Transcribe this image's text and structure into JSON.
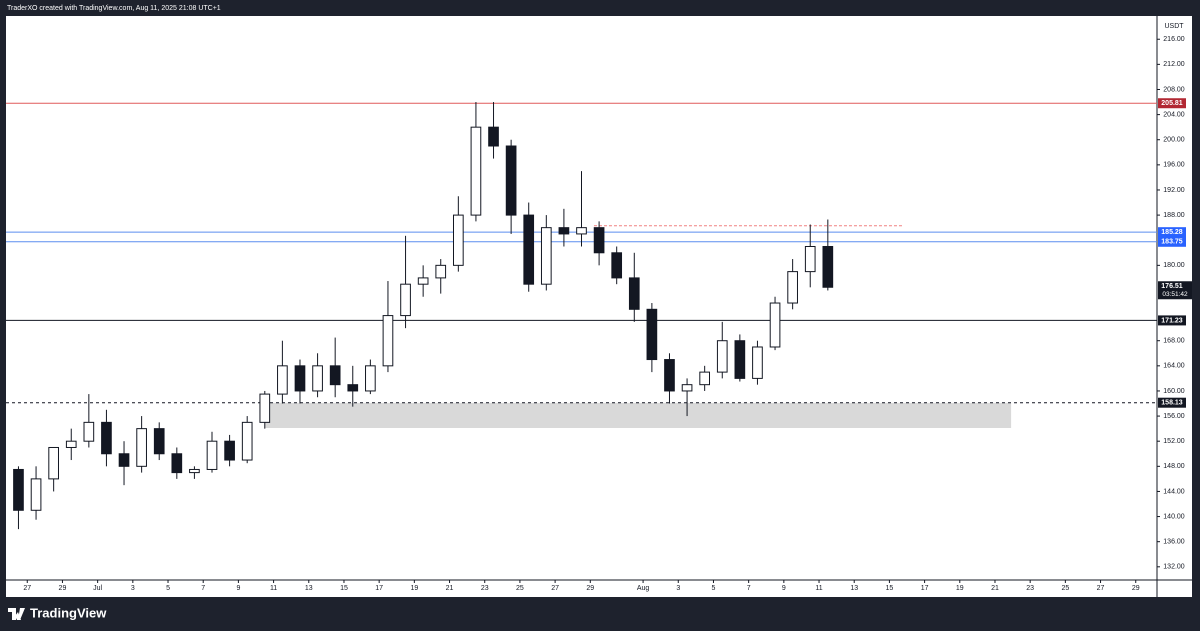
{
  "header": "TraderXO created with TradingView.com, Aug 11, 2025 21:08 UTC+1",
  "footer": "TradingView",
  "chart_data": {
    "type": "candlestick",
    "currency": "USDT",
    "x": [
      "2025-06-26T00:00",
      "2025-06-27T00:00",
      "2025-06-28T00:00",
      "2025-06-29T00:00",
      "2025-06-30T00:00",
      "2025-07-01T00:00",
      "2025-07-02T00:00",
      "2025-07-03T00:00",
      "2025-07-04T00:00",
      "2025-07-05T00:00",
      "2025-07-06T00:00",
      "2025-07-07T00:00",
      "2025-07-08T00:00",
      "2025-07-09T00:00",
      "2025-07-10T00:00",
      "2025-07-11T00:00",
      "2025-07-12T00:00",
      "2025-07-13T00:00",
      "2025-07-14T00:00",
      "2025-07-15T00:00",
      "2025-07-16T00:00",
      "2025-07-17T00:00",
      "2025-07-18T00:00",
      "2025-07-19T00:00",
      "2025-07-20T00:00",
      "2025-07-21T00:00",
      "2025-07-22T00:00",
      "2025-07-23T00:00",
      "2025-07-24T00:00",
      "2025-07-25T00:00",
      "2025-07-26T00:00",
      "2025-07-27T00:00",
      "2025-07-28T00:00",
      "2025-07-29T00:00",
      "2025-07-30T00:00",
      "2025-07-31T00:00",
      "2025-08-01T00:00",
      "2025-08-02T00:00",
      "2025-08-03T00:00",
      "2025-08-04T00:00",
      "2025-08-05T00:00",
      "2025-08-06T00:00",
      "2025-08-07T00:00",
      "2025-08-08T00:00",
      "2025-08-09T00:00",
      "2025-08-10T00:00",
      "2025-08-11T00:00"
    ],
    "open": [
      147.5,
      141,
      146,
      151,
      152,
      155,
      150,
      148,
      154,
      150,
      147,
      147.5,
      152,
      149,
      155,
      159.5,
      164,
      160,
      164,
      161,
      160,
      164,
      172,
      177,
      178,
      180,
      188,
      202,
      199,
      188,
      177,
      186,
      185,
      186,
      182,
      178,
      173,
      165,
      160,
      161,
      163,
      168,
      162,
      167,
      174,
      179,
      183
    ],
    "high": [
      148,
      148,
      150.5,
      154,
      159.5,
      157,
      152,
      156,
      155,
      151,
      148,
      153.5,
      153,
      156,
      160,
      168,
      165,
      166,
      168.5,
      164,
      165,
      177.5,
      184.7,
      180,
      181,
      191,
      206,
      206,
      200,
      190,
      188,
      189,
      195,
      187,
      183,
      182,
      174,
      166,
      162,
      164,
      171,
      169,
      168,
      175,
      181,
      186.5,
      187.3
    ],
    "low": [
      138,
      139.5,
      144,
      149,
      151,
      148,
      145,
      147,
      149,
      146,
      146,
      147,
      148,
      148.5,
      154,
      158,
      158,
      159,
      159,
      157.5,
      159.5,
      163,
      170,
      175,
      175.5,
      179,
      187,
      197,
      185,
      175.8,
      176,
      183,
      183,
      180,
      177,
      171,
      163,
      158,
      156,
      160,
      162,
      161.5,
      161,
      166.5,
      173,
      176.5,
      176
    ],
    "close": [
      141,
      146,
      151,
      152,
      155,
      150,
      148,
      154,
      150,
      147,
      147.5,
      152,
      149,
      155,
      159.5,
      164,
      160,
      164,
      161,
      160,
      164,
      172,
      177,
      178,
      180,
      188,
      202,
      199,
      188,
      177,
      186,
      185,
      186,
      182,
      178,
      173,
      165,
      160,
      161,
      163,
      168,
      162,
      167,
      174,
      179,
      183,
      176.51
    ],
    "xlim": [
      "2025-06-25T19:00",
      "2025-08-30T05:00"
    ],
    "ylim": [
      129.9,
      219.7
    ],
    "xticks": [
      {
        "value": "2025-06-27T00:00",
        "label": "27"
      },
      {
        "value": "2025-06-29T00:00",
        "label": "29"
      },
      {
        "value": "2025-07-01T00:00",
        "label": "Jul"
      },
      {
        "value": "2025-07-03T00:00",
        "label": "3"
      },
      {
        "value": "2025-07-05T00:00",
        "label": "5"
      },
      {
        "value": "2025-07-07T00:00",
        "label": "7"
      },
      {
        "value": "2025-07-09T00:00",
        "label": "9"
      },
      {
        "value": "2025-07-11T00:00",
        "label": "11"
      },
      {
        "value": "2025-07-13T00:00",
        "label": "13"
      },
      {
        "value": "2025-07-15T00:00",
        "label": "15"
      },
      {
        "value": "2025-07-17T00:00",
        "label": "17"
      },
      {
        "value": "2025-07-19T00:00",
        "label": "19"
      },
      {
        "value": "2025-07-21T00:00",
        "label": "21"
      },
      {
        "value": "2025-07-23T00:00",
        "label": "23"
      },
      {
        "value": "2025-07-25T00:00",
        "label": "25"
      },
      {
        "value": "2025-07-27T00:00",
        "label": "27"
      },
      {
        "value": "2025-07-29T00:00",
        "label": "29"
      },
      {
        "value": "2025-08-01T00:00",
        "label": "Aug"
      },
      {
        "value": "2025-08-03T00:00",
        "label": "3"
      },
      {
        "value": "2025-08-05T00:00",
        "label": "5"
      },
      {
        "value": "2025-08-07T00:00",
        "label": "7"
      },
      {
        "value": "2025-08-09T00:00",
        "label": "9"
      },
      {
        "value": "2025-08-11T00:00",
        "label": "11"
      },
      {
        "value": "2025-08-13T00:00",
        "label": "13"
      },
      {
        "value": "2025-08-15T00:00",
        "label": "15"
      },
      {
        "value": "2025-08-17T00:00",
        "label": "17"
      },
      {
        "value": "2025-08-19T00:00",
        "label": "19"
      },
      {
        "value": "2025-08-21T00:00",
        "label": "21"
      },
      {
        "value": "2025-08-23T00:00",
        "label": "23"
      },
      {
        "value": "2025-08-25T00:00",
        "label": "25"
      },
      {
        "value": "2025-08-27T00:00",
        "label": "27"
      },
      {
        "value": "2025-08-29T00:00",
        "label": "29"
      }
    ],
    "yticks": [
      {
        "value": 132,
        "label": "132.00"
      },
      {
        "value": 136,
        "label": "136.00"
      },
      {
        "value": 140,
        "label": "140.00"
      },
      {
        "value": 144,
        "label": "144.00"
      },
      {
        "value": 148,
        "label": "148.00"
      },
      {
        "value": 152,
        "label": "152.00"
      },
      {
        "value": 156,
        "label": "156.00"
      },
      {
        "value": 160,
        "label": "160.00"
      },
      {
        "value": 164,
        "label": "164.00"
      },
      {
        "value": 168,
        "label": "168.00"
      },
      {
        "value": 180,
        "label": "180.00"
      },
      {
        "value": 188,
        "label": "188.00"
      },
      {
        "value": 192,
        "label": "192.00"
      },
      {
        "value": 196,
        "label": "196.00"
      },
      {
        "value": 200,
        "label": "200.00"
      },
      {
        "value": 204,
        "label": "204.00"
      },
      {
        "value": 208,
        "label": "208.00"
      },
      {
        "value": 212,
        "label": "212.00"
      },
      {
        "value": 216,
        "label": "216.00"
      }
    ],
    "up_color": "#ffffff",
    "down_color": "#131722",
    "levels": [
      {
        "value": 205.81,
        "color": "#e05a5a",
        "label_color": "#b22833",
        "dashed": false
      },
      {
        "value": 185.28,
        "color": "#5b8def",
        "label_color": "#2962ff",
        "dashed": false
      },
      {
        "value": 183.75,
        "color": "#5b8def",
        "label_color": "#2962ff",
        "dashed": false
      },
      {
        "value": 171.23,
        "color": "#131722",
        "label_color": "#131722",
        "dashed": false
      },
      {
        "value": 158.13,
        "color": "#131722",
        "label_color": "#131722",
        "dashed": true
      }
    ],
    "segment": {
      "value": 186.3,
      "x": [
        "2025-07-29T05:00",
        "2025-08-15T19:00"
      ],
      "color": "#f08080"
    },
    "zone": {
      "x": [
        "2025-07-10T12:00",
        "2025-08-21T22:00"
      ],
      "y": [
        154.1,
        158.1
      ],
      "color": "#d9d9d9"
    },
    "last_price": {
      "value": 176.51,
      "countdown": "03:51:42"
    }
  }
}
